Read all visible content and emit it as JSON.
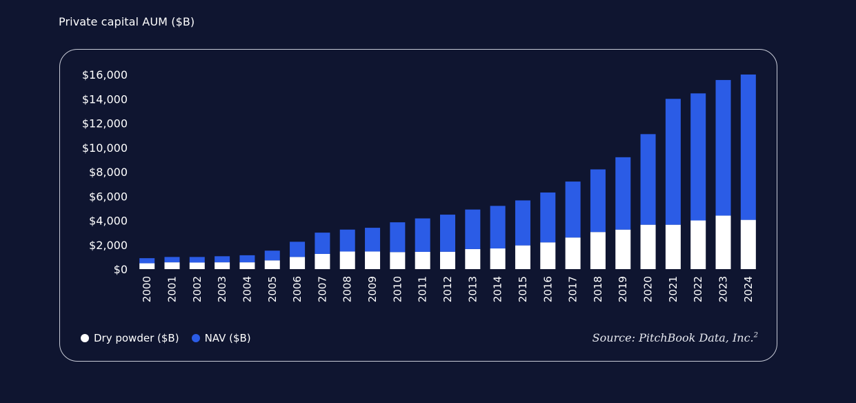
{
  "page": {
    "title": "Private capital AUM ($B)"
  },
  "legend": {
    "items": [
      {
        "label": "Dry powder ($B)",
        "color": "#ffffff"
      },
      {
        "label": "NAV ($B)",
        "color": "#2b5ce6"
      }
    ]
  },
  "source": {
    "text": "Source: PitchBook Data, Inc.",
    "note": "2"
  },
  "chart_data": {
    "type": "bar",
    "stacked": true,
    "categories": [
      "2000",
      "2001",
      "2002",
      "2003",
      "2004",
      "2005",
      "2006",
      "2007",
      "2008",
      "2009",
      "2010",
      "2011",
      "2012",
      "2013",
      "2014",
      "2015",
      "2016",
      "2017",
      "2018",
      "2019",
      "2020",
      "2021",
      "2022",
      "2023",
      "2024"
    ],
    "series": [
      {
        "name": "Dry powder ($B)",
        "color": "#ffffff",
        "values": [
          480,
          560,
          540,
          560,
          560,
          720,
          1000,
          1250,
          1450,
          1450,
          1400,
          1420,
          1430,
          1650,
          1700,
          1950,
          2200,
          2600,
          3050,
          3250,
          3650,
          3650,
          4000,
          4400,
          4050
        ]
      },
      {
        "name": "NAV ($B)",
        "color": "#2b5ce6",
        "values": [
          420,
          440,
          460,
          500,
          580,
          800,
          1250,
          1750,
          1800,
          1950,
          2450,
          2750,
          3050,
          3250,
          3500,
          3700,
          4100,
          4600,
          5150,
          5950,
          7450,
          10350,
          10450,
          11150,
          11950
        ]
      }
    ],
    "y_ticks": [
      "$0",
      "$2,000",
      "$4,000",
      "$6,000",
      "$8,000",
      "$10,000",
      "$12,000",
      "$14,000",
      "$16,000"
    ],
    "ylim": [
      0,
      16000
    ],
    "xlabel": "",
    "ylabel": "",
    "grid": false,
    "legend_position": "bottom-left"
  }
}
